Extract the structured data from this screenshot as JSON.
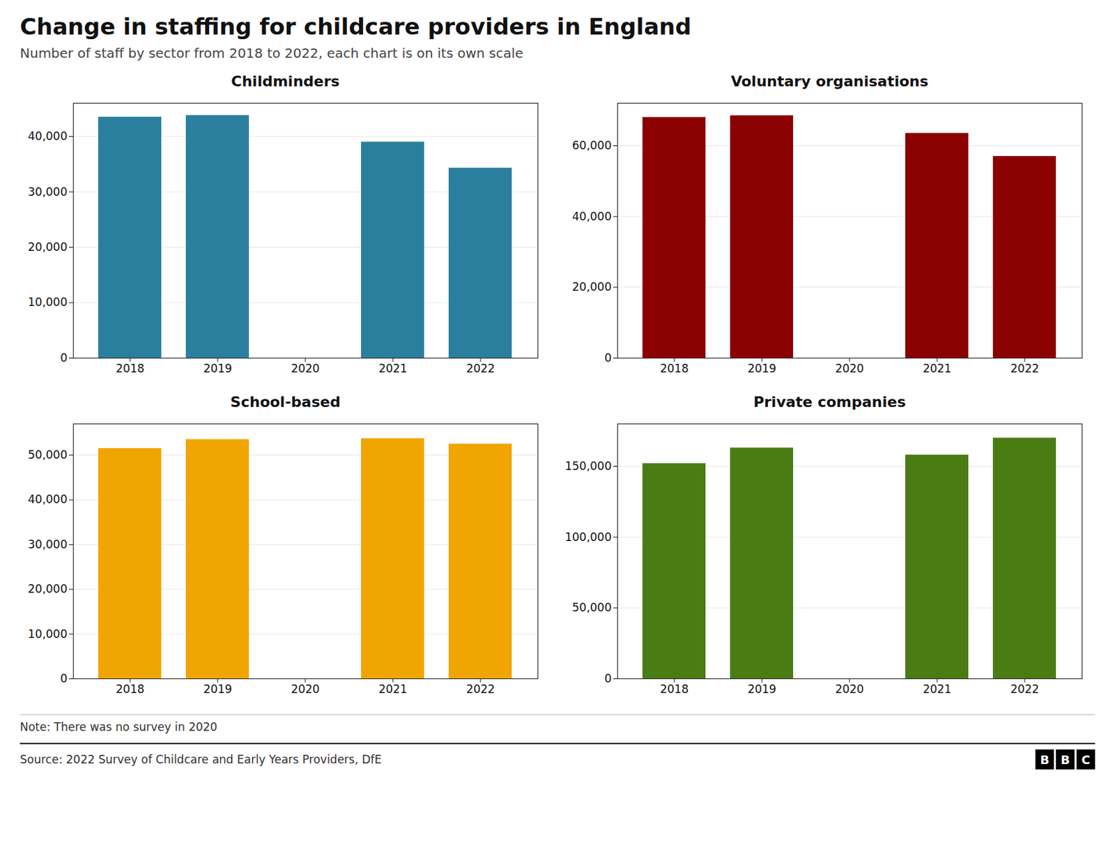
{
  "title": "Change in staffing for childcare providers in England",
  "subtitle": "Number of staff by sector from 2018 to 2022, each chart is on its own scale",
  "annotations": [
    "Note: There was no survey in 2020",
    "Source: 2022 Survey of Childcare and Early Years Providers, DfE",
    "B",
    "B",
    "C"
  ],
  "chart_data": [
    {
      "type": "bar",
      "title": "Childminders",
      "color": "#2a7f9e",
      "categories": [
        "2018",
        "2019",
        "2020",
        "2021",
        "2022"
      ],
      "values": [
        43500,
        43800,
        null,
        39000,
        34300
      ],
      "ylim": [
        0,
        46000
      ],
      "yticks": [
        0,
        {
          "value": 10000,
          "label": "10,000"
        },
        {
          "value": 20000,
          "label": "20,000"
        },
        {
          "value": 30000,
          "label": "30,000"
        },
        {
          "value": 40000,
          "label": "40,000"
        }
      ],
      "grid": true
    },
    {
      "type": "bar",
      "title": "Voluntary organisations",
      "color": "#8b0000",
      "categories": [
        "2018",
        "2019",
        "2020",
        "2021",
        "2022"
      ],
      "values": [
        68000,
        68500,
        null,
        63500,
        57000
      ],
      "ylim": [
        0,
        72000
      ],
      "yticks": [
        0,
        {
          "value": 20000,
          "label": "20,000"
        },
        {
          "value": 40000,
          "label": "40,000"
        },
        {
          "value": 60000,
          "label": "60,000"
        }
      ],
      "grid": true
    },
    {
      "type": "bar",
      "title": "School-based",
      "color": "#f0a500",
      "categories": [
        "2018",
        "2019",
        "2020",
        "2021",
        "2022"
      ],
      "values": [
        51500,
        53500,
        null,
        53700,
        52500
      ],
      "ylim": [
        0,
        57000
      ],
      "yticks": [
        0,
        {
          "value": 10000,
          "label": "10,000"
        },
        {
          "value": 20000,
          "label": "20,000"
        },
        {
          "value": 30000,
          "label": "30,000"
        },
        {
          "value": 40000,
          "label": "40,000"
        },
        {
          "value": 50000,
          "label": "50,000"
        }
      ],
      "grid": true
    },
    {
      "type": "bar",
      "title": "Private companies",
      "color": "#4a7c14",
      "categories": [
        "2018",
        "2019",
        "2020",
        "2021",
        "2022"
      ],
      "values": [
        152000,
        163000,
        null,
        158000,
        170000
      ],
      "ylim": [
        0,
        180000
      ],
      "yticks": [
        0,
        {
          "value": 50000,
          "label": "50,000"
        },
        {
          "value": 100000,
          "label": "100,000"
        },
        {
          "value": 150000,
          "label": "150,000"
        }
      ],
      "grid": true
    }
  ]
}
